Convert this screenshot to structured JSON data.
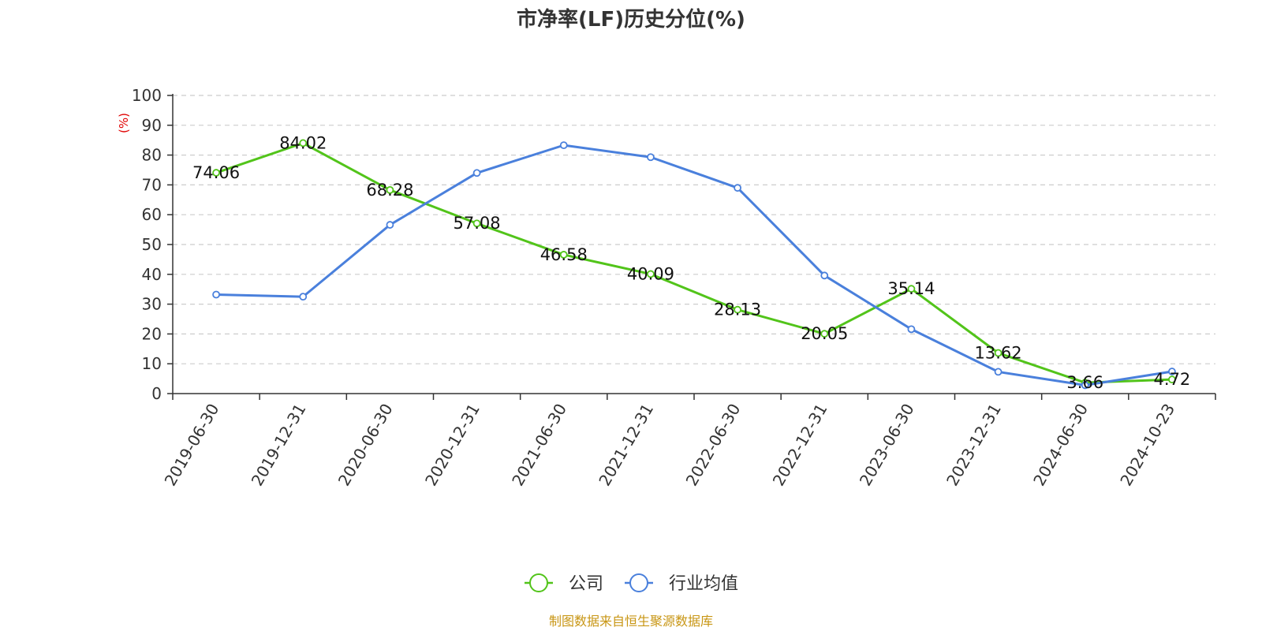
{
  "chart_data": {
    "type": "line",
    "title": "市净率(LF)历史分位(%)",
    "ylabel": "(%)",
    "categories": [
      "2019-06-30",
      "2019-12-31",
      "2020-06-30",
      "2020-12-31",
      "2021-06-30",
      "2021-12-31",
      "2022-06-30",
      "2022-12-31",
      "2023-06-30",
      "2023-12-31",
      "2024-06-30",
      "2024-10-23"
    ],
    "ylim": [
      0,
      100
    ],
    "yticks": [
      0,
      10,
      20,
      30,
      40,
      50,
      60,
      70,
      80,
      90,
      100
    ],
    "grid": true,
    "legend_position": "bottom-center",
    "series": [
      {
        "name": "公司",
        "color": "#52c41a",
        "values": [
          74.06,
          84.02,
          68.28,
          57.08,
          46.58,
          40.09,
          28.13,
          20.05,
          35.14,
          13.62,
          3.66,
          4.72
        ],
        "labels": [
          "74.06",
          "84.02",
          "68.28",
          "57.08",
          "46.58",
          "40.09",
          "28.13",
          "20.05",
          "35.14",
          "13.62",
          "3.66",
          "4.72"
        ]
      },
      {
        "name": "行业均值",
        "color": "#4a80dc",
        "values": [
          33.2,
          32.5,
          56.6,
          74.0,
          83.3,
          79.3,
          69.0,
          39.6,
          21.6,
          7.3,
          2.8,
          7.4
        ]
      }
    ],
    "source": "制图数据来自恒生聚源数据库"
  }
}
